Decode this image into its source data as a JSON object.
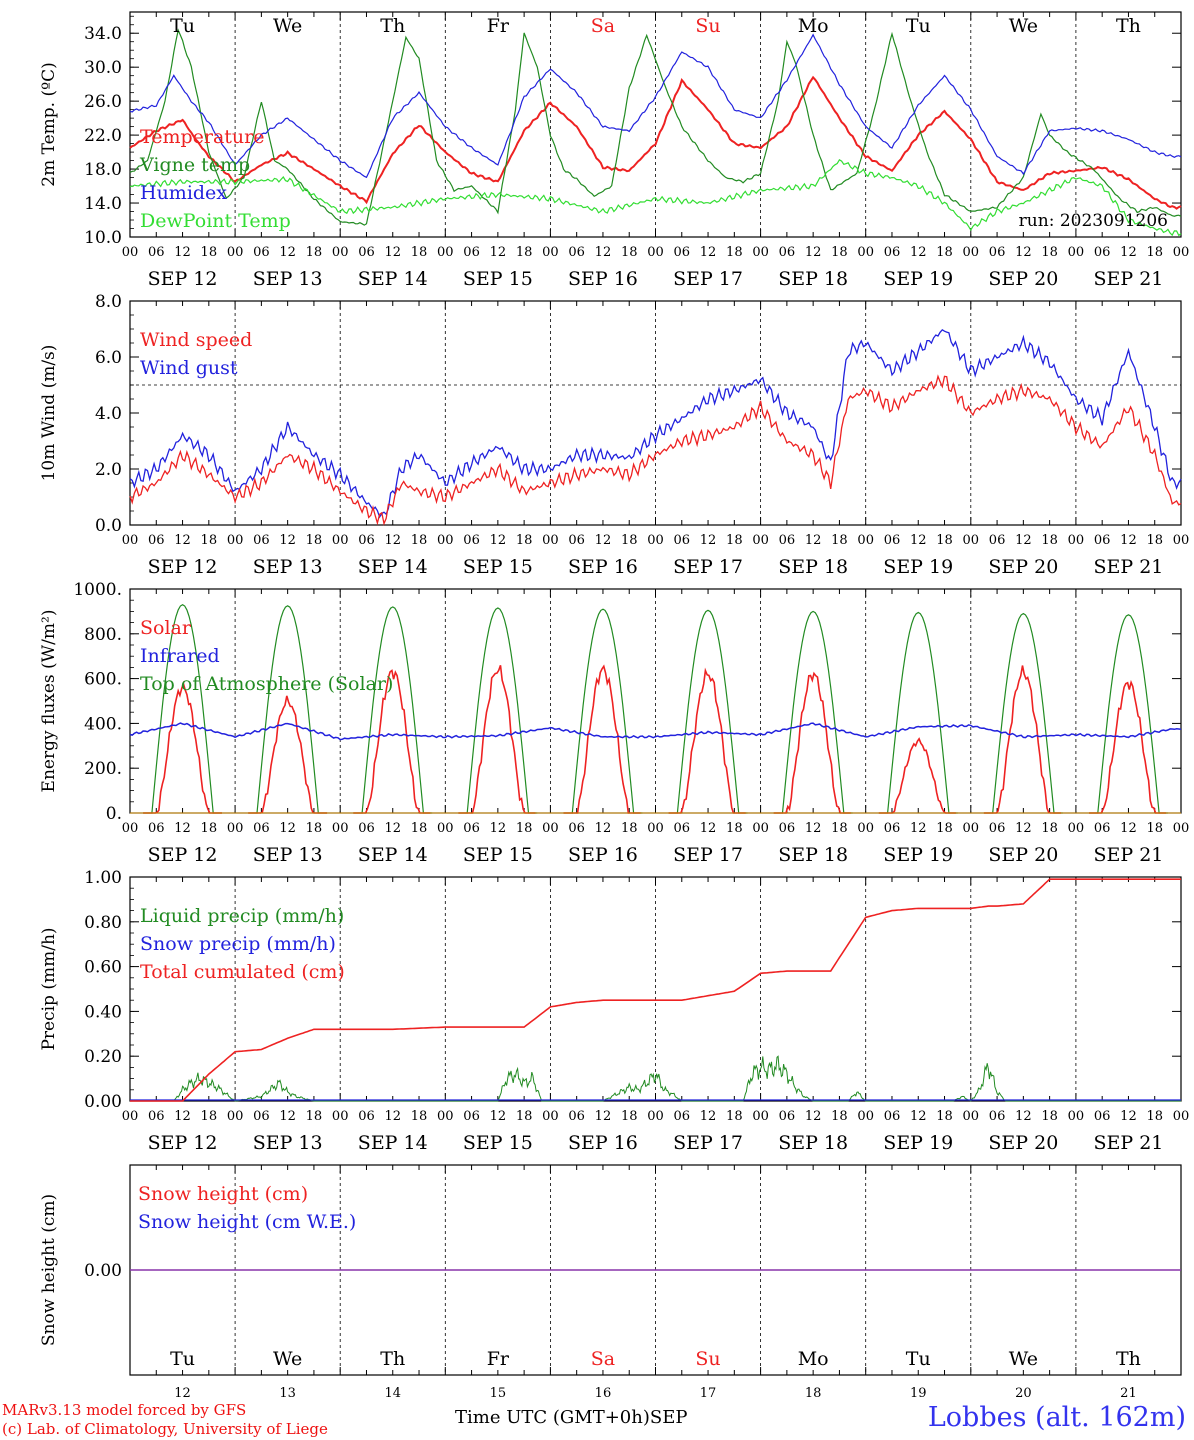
{
  "chart_data": [
    {
      "type": "line",
      "ylabel": "2m Temp. (ºC)",
      "ylim": [
        10,
        36.5
      ],
      "yticks": [
        "10.0",
        "14.0",
        "18.0",
        "22.0",
        "26.0",
        "30.0",
        "34.0"
      ],
      "run_label": "run: 2023091206",
      "legend": [
        {
          "name": "Temperature",
          "color": "#ee2222"
        },
        {
          "name": "Vigne temp",
          "color": "#228b22"
        },
        {
          "name": "Humidex",
          "color": "#2222dd"
        },
        {
          "name": "DewPoint Temp",
          "color": "#33dd33"
        }
      ],
      "series": [
        {
          "name": "Temperature",
          "color": "#ee2222",
          "x": [
            0,
            6,
            12,
            15,
            18,
            24,
            30,
            36,
            42,
            48,
            54,
            60,
            66,
            72,
            78,
            84,
            90,
            96,
            102,
            108,
            114,
            120,
            126,
            132,
            138,
            144,
            150,
            156,
            162,
            168,
            174,
            180,
            186,
            192,
            198,
            204,
            210,
            216,
            222,
            228,
            234,
            238
          ],
          "y": [
            20.5,
            22.5,
            23.8,
            21.5,
            19.5,
            16.5,
            18.5,
            19.9,
            18.0,
            16.0,
            14.2,
            19.8,
            23.2,
            20.0,
            17.5,
            16.5,
            22.5,
            25.8,
            23.0,
            18.2,
            17.8,
            21.0,
            28.4,
            25.0,
            21.0,
            20.5,
            23.0,
            28.9,
            24.0,
            19.5,
            17.8,
            22.0,
            24.8,
            21.5,
            16.5,
            15.5,
            17.5,
            17.8,
            18.2,
            16.8,
            14.5,
            13.5
          ]
        },
        {
          "name": "Vigne temp",
          "color": "#228b22",
          "x": [
            0,
            4,
            8,
            11,
            14,
            18,
            22,
            26,
            30,
            33,
            36,
            42,
            48,
            54,
            60,
            63,
            66,
            70,
            74,
            78,
            84,
            88,
            90,
            93,
            96,
            99,
            102,
            106,
            110,
            114,
            118,
            122,
            126,
            132,
            136,
            140,
            144,
            148,
            150,
            152,
            156,
            160,
            166,
            170,
            174,
            178,
            182,
            186,
            192,
            198,
            204,
            208,
            210,
            214,
            220,
            226,
            230,
            234,
            238
          ],
          "y": [
            17.5,
            19.0,
            26.0,
            34.5,
            30.0,
            20.0,
            14.5,
            17.0,
            26.0,
            19.0,
            18.0,
            14.5,
            11.8,
            11.5,
            26.0,
            33.5,
            31.0,
            19.0,
            15.5,
            16.0,
            13.0,
            25.0,
            34.0,
            30.0,
            22.0,
            18.0,
            16.8,
            14.8,
            16.0,
            27.5,
            33.8,
            28.0,
            23.0,
            19.0,
            17.0,
            16.5,
            17.5,
            26.0,
            33.0,
            30.5,
            22.0,
            15.5,
            17.5,
            25.0,
            34.0,
            26.5,
            20.0,
            15.0,
            13.0,
            13.5,
            17.0,
            24.5,
            22.0,
            20.0,
            18.0,
            14.5,
            13.0,
            13.5,
            12.5
          ]
        },
        {
          "name": "Humidex",
          "color": "#2222dd",
          "x": [
            0,
            6,
            10,
            14,
            18,
            24,
            30,
            36,
            42,
            48,
            54,
            60,
            66,
            72,
            78,
            84,
            90,
            96,
            102,
            108,
            114,
            120,
            126,
            132,
            138,
            144,
            150,
            156,
            162,
            168,
            174,
            180,
            186,
            192,
            198,
            204,
            210,
            216,
            222,
            228,
            234,
            238
          ],
          "y": [
            24.8,
            25.5,
            29.0,
            26.0,
            23.5,
            18.5,
            22.0,
            24.0,
            21.5,
            19.0,
            17.0,
            24.0,
            27.0,
            23.0,
            20.5,
            18.5,
            26.5,
            29.8,
            27.0,
            23.0,
            22.5,
            26.5,
            31.8,
            30.0,
            25.0,
            24.0,
            28.5,
            33.8,
            28.0,
            23.0,
            20.5,
            25.5,
            29.0,
            25.0,
            19.5,
            17.5,
            22.5,
            22.8,
            22.5,
            21.5,
            20.0,
            19.5
          ]
        },
        {
          "name": "DewPoint Temp",
          "color": "#33dd33",
          "x": [
            0,
            12,
            24,
            36,
            48,
            60,
            72,
            84,
            96,
            108,
            120,
            132,
            144,
            156,
            162,
            168,
            174,
            180,
            186,
            192,
            198,
            204,
            210,
            216,
            222,
            228,
            234,
            238
          ],
          "y": [
            16.0,
            16.5,
            16.5,
            16.8,
            13.0,
            13.5,
            14.5,
            15.0,
            14.5,
            13.0,
            14.5,
            14.0,
            15.5,
            16.0,
            19.0,
            17.5,
            17.0,
            16.0,
            14.0,
            11.0,
            13.0,
            14.0,
            15.5,
            17.0,
            16.0,
            12.0,
            11.0,
            10.5
          ]
        }
      ]
    },
    {
      "type": "line",
      "ylabel": "10m Wind (m/s)",
      "ylim": [
        0,
        8
      ],
      "yticks": [
        "0.0",
        "2.0",
        "4.0",
        "6.0",
        "8.0"
      ],
      "reference_line": 5.0,
      "legend": [
        {
          "name": "Wind speed",
          "color": "#ee2222"
        },
        {
          "name": "Wind gust",
          "color": "#2222dd"
        }
      ],
      "series": [
        {
          "name": "Wind speed",
          "color": "#ee2222",
          "x": [
            0,
            6,
            12,
            18,
            24,
            30,
            36,
            42,
            48,
            54,
            58,
            62,
            66,
            72,
            78,
            84,
            90,
            96,
            102,
            108,
            114,
            120,
            126,
            132,
            138,
            144,
            150,
            156,
            160,
            164,
            168,
            174,
            180,
            186,
            192,
            198,
            204,
            210,
            216,
            222,
            228,
            234,
            238
          ],
          "y": [
            1.0,
            1.5,
            2.5,
            1.8,
            1.0,
            1.5,
            2.5,
            2.0,
            1.2,
            0.5,
            0.2,
            1.5,
            1.2,
            1.0,
            1.5,
            2.0,
            1.2,
            1.5,
            1.8,
            2.0,
            1.8,
            2.5,
            3.0,
            3.2,
            3.5,
            4.2,
            3.0,
            2.5,
            1.5,
            4.5,
            4.8,
            4.2,
            4.8,
            5.2,
            4.0,
            4.5,
            4.8,
            4.5,
            3.5,
            2.8,
            4.2,
            2.5,
            0.8
          ]
        },
        {
          "name": "Wind gust",
          "color": "#2222dd",
          "x": [
            0,
            6,
            12,
            18,
            24,
            30,
            36,
            42,
            48,
            54,
            58,
            62,
            66,
            72,
            78,
            84,
            90,
            96,
            102,
            108,
            114,
            120,
            126,
            132,
            138,
            144,
            150,
            156,
            160,
            164,
            168,
            174,
            180,
            186,
            192,
            198,
            204,
            210,
            216,
            222,
            228,
            234,
            238
          ],
          "y": [
            1.5,
            2.0,
            3.2,
            2.5,
            1.2,
            2.0,
            3.5,
            2.5,
            1.8,
            0.8,
            0.3,
            2.0,
            2.5,
            1.5,
            2.2,
            2.8,
            2.0,
            2.0,
            2.5,
            2.5,
            2.4,
            3.2,
            3.8,
            4.5,
            4.8,
            5.2,
            4.0,
            3.5,
            2.2,
            6.2,
            6.5,
            5.5,
            6.2,
            7.0,
            5.5,
            6.0,
            6.5,
            5.8,
            4.5,
            3.8,
            6.2,
            3.5,
            1.5
          ]
        }
      ]
    },
    {
      "type": "line",
      "ylabel": "Energy fluxes (W/m²)",
      "ylim": [
        0,
        1000
      ],
      "yticks": [
        "0.",
        "200.",
        "400.",
        "600.",
        "800.",
        "1000."
      ],
      "legend": [
        {
          "name": "Solar",
          "color": "#ee2222"
        },
        {
          "name": "Infrared",
          "color": "#2222dd"
        },
        {
          "name": "Top of Atmosphere (Solar)",
          "color": "#228b22"
        }
      ],
      "toa_peaks": [
        930,
        925,
        920,
        915,
        910,
        905,
        900,
        895,
        890,
        885
      ],
      "solar_peaks": [
        560,
        500,
        630,
        640,
        640,
        620,
        620,
        320,
        630,
        580
      ],
      "infrared": {
        "x": [
          0,
          12,
          24,
          36,
          48,
          60,
          72,
          84,
          96,
          108,
          120,
          132,
          144,
          156,
          168,
          180,
          192,
          204,
          216,
          228,
          238
        ],
        "y": [
          350,
          400,
          340,
          400,
          330,
          350,
          340,
          345,
          380,
          340,
          340,
          360,
          350,
          400,
          340,
          385,
          390,
          340,
          350,
          340,
          375
        ]
      }
    },
    {
      "type": "line",
      "ylabel": "Precip (mm/h)",
      "ylim": [
        0,
        1.0
      ],
      "yticks": [
        "0.00",
        "0.20",
        "0.40",
        "0.60",
        "0.80",
        "1.00"
      ],
      "legend": [
        {
          "name": "Liquid precip (mm/h)",
          "color": "#228b22"
        },
        {
          "name": "Snow precip (mm/h)",
          "color": "#2222dd"
        },
        {
          "name": "Total cumulated (cm)",
          "color": "#ee2222"
        }
      ],
      "series": [
        {
          "name": "Total cumulated (cm)",
          "color": "#ee2222",
          "x": [
            0,
            12,
            18,
            24,
            30,
            36,
            42,
            48,
            60,
            72,
            84,
            90,
            96,
            102,
            108,
            114,
            120,
            126,
            132,
            138,
            144,
            150,
            156,
            160,
            168,
            174,
            180,
            186,
            192,
            196,
            198,
            204,
            210,
            216,
            222,
            228,
            234,
            238
          ],
          "y": [
            0,
            0,
            0.12,
            0.22,
            0.23,
            0.28,
            0.32,
            0.32,
            0.32,
            0.33,
            0.33,
            0.33,
            0.42,
            0.44,
            0.45,
            0.45,
            0.45,
            0.45,
            0.47,
            0.49,
            0.57,
            0.58,
            0.58,
            0.58,
            0.82,
            0.85,
            0.86,
            0.86,
            0.86,
            0.87,
            0.87,
            0.88,
            0.99,
            0.99,
            0.99,
            0.99,
            0.99,
            0.99
          ]
        },
        {
          "name": "Liquid precip (mm/h)",
          "color": "#228b22",
          "x": [
            0,
            10,
            12,
            14,
            16,
            18,
            20,
            22,
            24,
            30,
            34,
            36,
            38,
            42,
            48,
            84,
            86,
            88,
            90,
            92,
            94,
            108,
            112,
            114,
            116,
            118,
            120,
            122,
            124,
            126,
            140,
            142,
            144,
            146,
            148,
            150,
            152,
            154,
            156,
            164,
            166,
            168,
            170,
            172,
            174,
            176,
            188,
            190,
            192,
            194,
            196,
            198,
            200,
            202
          ],
          "y": [
            0,
            0,
            0.05,
            0.08,
            0.1,
            0.08,
            0.06,
            0.03,
            0,
            0.02,
            0.08,
            0.04,
            0.02,
            0,
            0,
            0,
            0.1,
            0.12,
            0.08,
            0.1,
            0,
            0,
            0.04,
            0.06,
            0.05,
            0.08,
            0.12,
            0.05,
            0.03,
            0,
            0,
            0.12,
            0.15,
            0.14,
            0.16,
            0.12,
            0.06,
            0.02,
            0,
            0,
            0.04,
            0,
            0,
            0,
            0,
            0,
            0,
            0.02,
            0,
            0.05,
            0.16,
            0.04,
            0,
            0
          ]
        }
      ]
    },
    {
      "type": "line",
      "ylabel": "Snow height (cm)",
      "ylim": [
        -1,
        1
      ],
      "yticks": [
        "0.00"
      ],
      "legend": [
        {
          "name": "Snow height (cm)",
          "color": "#ee2222"
        },
        {
          "name": "Snow height (cm W.E.)",
          "color": "#2222dd"
        }
      ],
      "value": 0.0
    }
  ],
  "x_axis": {
    "hour_ticks": [
      "00",
      "06",
      "12",
      "18"
    ],
    "final_tick": "00",
    "dates": [
      "SEP 12",
      "SEP 13",
      "SEP 14",
      "SEP 15",
      "SEP 16",
      "SEP 17",
      "SEP 18",
      "SEP 19",
      "SEP 20",
      "SEP 21"
    ],
    "days": [
      "Tu",
      "We",
      "Th",
      "Fr",
      "Sa",
      "Su",
      "Mo",
      "Tu",
      "We",
      "Th"
    ],
    "weekend_days": [
      4,
      5
    ],
    "day_numbers": [
      "12",
      "13",
      "14",
      "15",
      "16",
      "17",
      "18",
      "19",
      "20",
      "21"
    ],
    "title": "Time UTC (GMT+0h)",
    "month": "SEP"
  },
  "footer": {
    "line1": "MARv3.13 model forced by GFS",
    "line2": "(c) Lab. of Climatology, University of Liege",
    "station": "Lobbes (alt. 162m)"
  }
}
